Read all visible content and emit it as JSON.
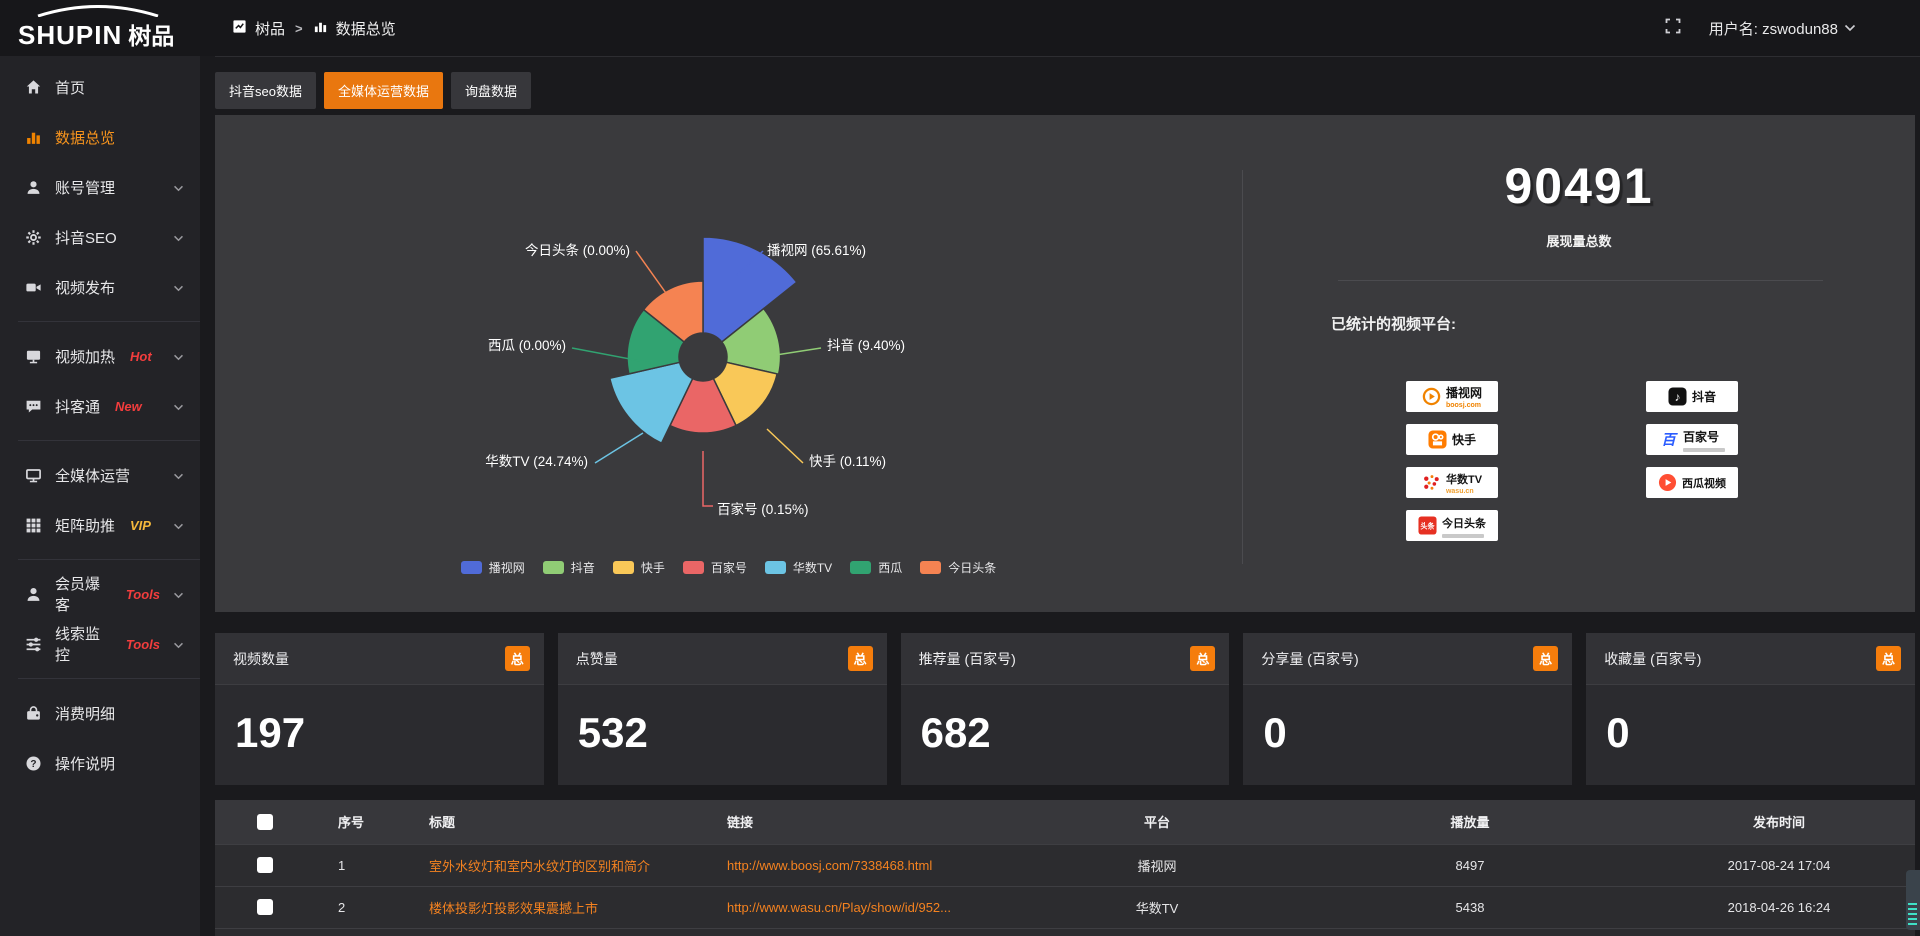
{
  "header": {
    "logo_text": "SHUPIN",
    "logo_suffix": "树品",
    "breadcrumb": {
      "root": "树品",
      "separator": ">",
      "current": "数据总览"
    },
    "username": "用户名: zswodun88"
  },
  "sidebar": {
    "items": [
      {
        "label": "首页",
        "icon": "home"
      },
      {
        "label": "数据总览",
        "icon": "chart",
        "active": true
      },
      {
        "label": "账号管理",
        "icon": "user",
        "expandable": true
      },
      {
        "label": "抖音SEO",
        "icon": "gear",
        "expandable": true
      },
      {
        "label": "视频发布",
        "icon": "video",
        "expandable": true,
        "divider_after": true
      },
      {
        "label": "视频加热",
        "icon": "screen",
        "tag": "Hot",
        "tag_color": "#f23d3d",
        "expandable": true
      },
      {
        "label": "抖客通",
        "icon": "chat",
        "tag": "New",
        "tag_color": "#f23d3d",
        "expandable": true,
        "divider_after": true
      },
      {
        "label": "全媒体运营",
        "icon": "monitor",
        "expandable": true
      },
      {
        "label": "矩阵助推",
        "icon": "grid",
        "tag": "VIP",
        "tag_color": "#f5b93c",
        "expandable": true,
        "divider_after": true
      },
      {
        "label": "会员爆客",
        "icon": "person",
        "tag": "Tools",
        "tag_color": "#f23d3d",
        "expandable": true
      },
      {
        "label": "线索监控",
        "icon": "sliders",
        "tag": "Tools",
        "tag_color": "#f23d3d",
        "expandable": true,
        "divider_after": true
      },
      {
        "label": "消费明细",
        "icon": "wallet"
      },
      {
        "label": "操作说明",
        "icon": "question"
      }
    ]
  },
  "tabs": [
    {
      "label": "抖音seo数据"
    },
    {
      "label": "全媒体运营数据",
      "active": true
    },
    {
      "label": "询盘数据"
    }
  ],
  "chart_data": {
    "type": "pie",
    "rose": true,
    "title": "",
    "legend_position": "bottom",
    "slices": [
      {
        "name": "播视网",
        "value": 65.61,
        "label": "播视网 (65.61%)",
        "color": "#506BD8"
      },
      {
        "name": "抖音",
        "value": 9.4,
        "label": "抖音 (9.40%)",
        "color": "#90CC75"
      },
      {
        "name": "快手",
        "value": 0.11,
        "label": "快手 (0.11%)",
        "color": "#F9C858"
      },
      {
        "name": "百家号",
        "value": 0.15,
        "label": "百家号 (0.15%)",
        "color": "#EA6666"
      },
      {
        "name": "华数TV",
        "value": 24.74,
        "label": "华数TV (24.74%)",
        "color": "#6CC4E4"
      },
      {
        "name": "西瓜",
        "value": 0.0,
        "label": "西瓜 (0.00%)",
        "color": "#31A371"
      },
      {
        "name": "今日头条",
        "value": 0.0,
        "label": "今日头条 (0.00%)",
        "color": "#F58352"
      }
    ],
    "legend": [
      "播视网",
      "抖音",
      "快手",
      "百家号",
      "华数TV",
      "西瓜",
      "今日头条"
    ]
  },
  "summary": {
    "total_value": "90491",
    "total_label": "展现量总数",
    "platforms_title": "已统计的视频平台:",
    "platforms": [
      {
        "name": "播视网",
        "sub": "boosj.com",
        "icon": "boosj"
      },
      {
        "name": "快手",
        "icon": "kuaishou"
      },
      {
        "name": "华数TV",
        "sub": "wasu.cn",
        "icon": "wasu"
      },
      {
        "name": "今日头条",
        "icon": "toutiao",
        "tagline_bar": true
      },
      {
        "name": "抖音",
        "icon": "douyin"
      },
      {
        "name": "百家号",
        "icon": "baijia",
        "tagline_bar": true
      },
      {
        "name": "西瓜视频",
        "icon": "xigua"
      }
    ]
  },
  "stat_cards": [
    {
      "label": "视频数量",
      "badge": "总",
      "value": "197"
    },
    {
      "label": "点赞量",
      "badge": "总",
      "value": "532"
    },
    {
      "label": "推荐量 (百家号)",
      "badge": "总",
      "value": "682"
    },
    {
      "label": "分享量 (百家号)",
      "badge": "总",
      "value": "0"
    },
    {
      "label": "收藏量 (百家号)",
      "badge": "总",
      "value": "0"
    }
  ],
  "table": {
    "columns": [
      "序号",
      "标题",
      "链接",
      "平台",
      "播放量",
      "发布时间"
    ],
    "rows": [
      {
        "index": "1",
        "title": "室外水纹灯和室内水纹灯的区别和简介",
        "link": "http://www.boosj.com/7338468.html",
        "platform": "播视网",
        "plays": "8497",
        "time": "2017-08-24 17:04"
      },
      {
        "index": "2",
        "title": "楼体投影灯投影效果震撼上市",
        "link": "http://www.wasu.cn/Play/show/id/952...",
        "platform": "华数TV",
        "plays": "5438",
        "time": "2018-04-26 16:24"
      }
    ]
  }
}
